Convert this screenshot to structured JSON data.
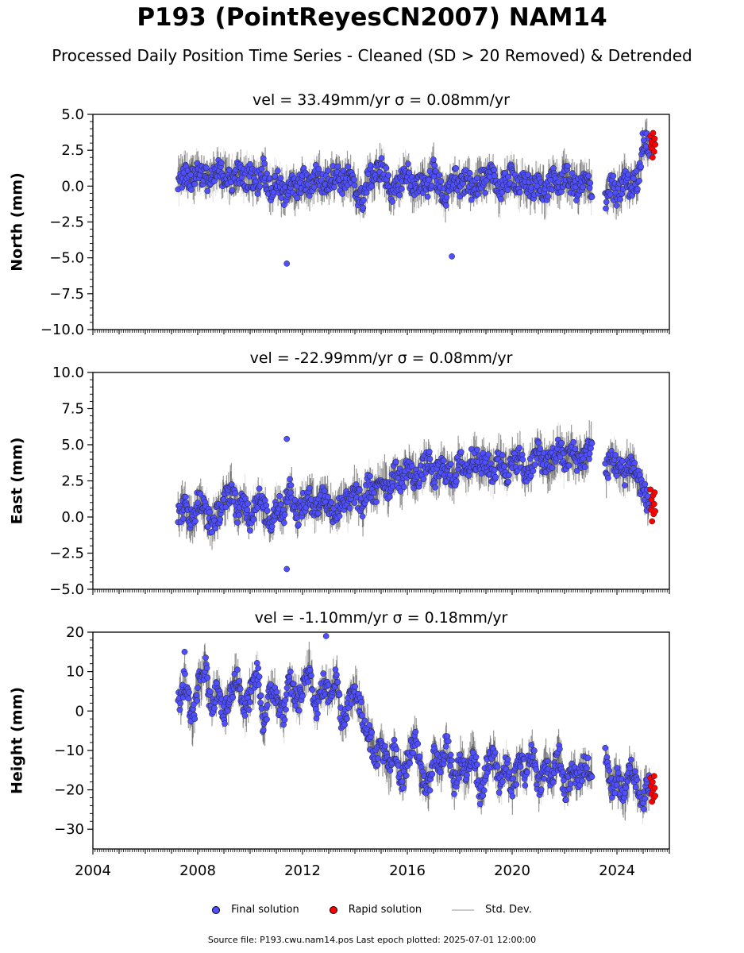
{
  "title": "P193 (PointReyesCN2007) NAM14",
  "subtitle": "Processed Daily Position Time Series - Cleaned (SD > 20 Removed) & Detrended",
  "footer": "Source file: P193.cwu.nam14.pos  Last epoch plotted: 2025-07-01 12:00:00",
  "legend": {
    "final_label": "Final solution",
    "rapid_label": "Rapid solution",
    "std_label": "Std. Dev."
  },
  "colors": {
    "final": "#4f4fff",
    "rapid": "#ff0000",
    "std_dark": "#444444",
    "std_light": "#cfcfcf"
  },
  "chart_data": [
    {
      "type": "scatter",
      "panel": "north",
      "subtitle": "vel = 33.49mm/yr   σ = 0.08mm/yr",
      "ylabel": "North (mm)",
      "xlim": [
        2004,
        2026
      ],
      "ylim": [
        -10,
        5
      ],
      "yticks": [
        "5.0",
        "2.5",
        "0.0",
        "−2.5",
        "−5.0",
        "−7.5",
        "−10.0"
      ],
      "ytick_values": [
        5,
        2.5,
        0,
        -2.5,
        -5,
        -7.5,
        -10
      ],
      "series": [
        {
          "name": "Final solution",
          "x": [
            2007.3,
            2007.5,
            2007.8,
            2008.0,
            2008.3,
            2008.5,
            2008.8,
            2009.0,
            2009.3,
            2009.5,
            2009.8,
            2010.0,
            2010.3,
            2010.5,
            2010.8,
            2011.0,
            2011.3,
            2011.5,
            2011.8,
            2012.0,
            2012.3,
            2012.5,
            2012.8,
            2013.0,
            2013.3,
            2013.5,
            2013.8,
            2014.0,
            2014.3,
            2014.5,
            2014.8,
            2015.0,
            2015.3,
            2015.5,
            2015.8,
            2016.0,
            2016.3,
            2016.5,
            2016.8,
            2017.0,
            2017.3,
            2017.5,
            2017.8,
            2018.0,
            2018.3,
            2018.5,
            2018.8,
            2019.0,
            2019.3,
            2019.5,
            2019.8,
            2020.0,
            2020.3,
            2020.5,
            2020.8,
            2021.0,
            2021.3,
            2021.5,
            2021.8,
            2022.0,
            2022.3,
            2022.5,
            2022.8,
            2023.0,
            2023.6,
            2023.8,
            2024.0,
            2024.3,
            2024.5,
            2024.8,
            2025.0,
            2025.2
          ],
          "y": [
            0.3,
            0.9,
            0.4,
            1.2,
            0.6,
            0.2,
            1.1,
            0.7,
            0.3,
            1.0,
            0.4,
            0.8,
            0.2,
            1.3,
            -0.6,
            0.5,
            -0.8,
            0.3,
            -0.4,
            0.6,
            -0.2,
            1.0,
            0.0,
            0.4,
            0.9,
            0.2,
            0.7,
            -0.3,
            -1.0,
            0.5,
            0.9,
            1.3,
            0.1,
            -0.6,
            0.6,
            1.0,
            -0.5,
            0.4,
            0.0,
            1.1,
            -0.4,
            -0.9,
            0.8,
            -0.2,
            0.5,
            -0.5,
            0.7,
            0.2,
            1.0,
            -0.4,
            0.4,
            0.8,
            -0.1,
            0.3,
            -0.3,
            0.2,
            -0.5,
            0.6,
            -0.1,
            0.9,
            0.1,
            -0.3,
            0.4,
            -0.2,
            -0.8,
            0.3,
            -1.0,
            0.6,
            -0.2,
            0.5,
            3.2,
            2.8
          ]
        },
        {
          "name": "Rapid solution",
          "x": [
            2025.28,
            2025.3,
            2025.32,
            2025.34,
            2025.36,
            2025.38,
            2025.4,
            2025.42,
            2025.44,
            2025.46
          ],
          "y": [
            3.5,
            2.8,
            3.1,
            2.6,
            2.0,
            3.7,
            3.0,
            2.4,
            3.3,
            2.9
          ]
        }
      ],
      "annotation_points": {
        "x": [
          2011.4,
          2017.7
        ],
        "y": [
          -5.4,
          -4.9
        ]
      }
    },
    {
      "type": "scatter",
      "panel": "east",
      "subtitle": "vel = -22.99mm/yr   σ = 0.08mm/yr",
      "ylabel": "East (mm)",
      "xlim": [
        2004,
        2026
      ],
      "ylim": [
        -5,
        10
      ],
      "yticks": [
        "10.0",
        "7.5",
        "5.0",
        "2.5",
        "0.0",
        "−2.5",
        "−5.0"
      ],
      "ytick_values": [
        10,
        7.5,
        5,
        2.5,
        0,
        -2.5,
        -5
      ],
      "series": [
        {
          "name": "Final solution",
          "x": [
            2007.3,
            2007.5,
            2007.8,
            2008.0,
            2008.3,
            2008.5,
            2008.8,
            2009.0,
            2009.3,
            2009.5,
            2009.8,
            2010.0,
            2010.3,
            2010.5,
            2010.8,
            2011.0,
            2011.3,
            2011.5,
            2011.8,
            2012.0,
            2012.3,
            2012.5,
            2012.8,
            2013.0,
            2013.3,
            2013.5,
            2013.8,
            2014.0,
            2014.3,
            2014.5,
            2014.8,
            2015.0,
            2015.3,
            2015.5,
            2015.8,
            2016.0,
            2016.3,
            2016.5,
            2016.8,
            2017.0,
            2017.3,
            2017.5,
            2017.8,
            2018.0,
            2018.3,
            2018.5,
            2018.8,
            2019.0,
            2019.3,
            2019.5,
            2019.8,
            2020.0,
            2020.3,
            2020.5,
            2020.8,
            2021.0,
            2021.3,
            2021.5,
            2021.8,
            2022.0,
            2022.3,
            2022.5,
            2022.8,
            2023.0,
            2023.6,
            2023.8,
            2024.0,
            2024.3,
            2024.5,
            2024.8,
            2025.0,
            2025.2
          ],
          "y": [
            0.2,
            0.8,
            -0.3,
            1.2,
            0.5,
            -0.6,
            0.3,
            1.0,
            2.0,
            0.4,
            1.1,
            -0.2,
            1.5,
            0.6,
            -0.4,
            0.9,
            0.3,
            2.2,
            0.1,
            0.8,
            1.3,
            0.5,
            1.6,
            0.7,
            0.2,
            1.2,
            0.9,
            1.8,
            0.6,
            2.3,
            1.4,
            2.7,
            1.9,
            3.2,
            2.4,
            3.6,
            2.5,
            3.0,
            4.0,
            2.6,
            3.5,
            3.1,
            2.7,
            3.9,
            3.2,
            4.3,
            3.5,
            3.8,
            2.9,
            4.1,
            3.0,
            3.6,
            4.2,
            2.8,
            3.9,
            4.5,
            3.4,
            4.0,
            4.8,
            3.7,
            4.6,
            3.9,
            4.2,
            5.0,
            3.2,
            4.1,
            3.5,
            3.0,
            3.8,
            2.8,
            1.8,
            1.0
          ]
        },
        {
          "name": "Rapid solution",
          "x": [
            2025.28,
            2025.3,
            2025.32,
            2025.34,
            2025.36,
            2025.38,
            2025.4,
            2025.42,
            2025.44,
            2025.46
          ],
          "y": [
            1.9,
            0.5,
            1.2,
            -0.3,
            0.8,
            1.5,
            0.2,
            0.9,
            1.7,
            0.4
          ]
        }
      ],
      "annotation_points": {
        "x": [
          2011.4,
          2011.4
        ],
        "y": [
          5.4,
          -3.6
        ]
      }
    },
    {
      "type": "scatter",
      "panel": "height",
      "subtitle": "vel = -1.10mm/yr   σ = 0.18mm/yr",
      "ylabel": "Height (mm)",
      "xlim": [
        2004,
        2026
      ],
      "ylim": [
        -35,
        20
      ],
      "yticks": [
        "20",
        "10",
        "0",
        "−10",
        "−20",
        "−30"
      ],
      "ytick_values": [
        20,
        10,
        0,
        -10,
        -20,
        -30
      ],
      "xticks": [
        "2004",
        "2008",
        "2012",
        "2016",
        "2020",
        "2024"
      ],
      "xtick_values": [
        2004,
        2008,
        2012,
        2016,
        2020,
        2024
      ],
      "series": [
        {
          "name": "Final solution",
          "x": [
            2007.3,
            2007.5,
            2007.8,
            2008.0,
            2008.3,
            2008.5,
            2008.8,
            2009.0,
            2009.3,
            2009.5,
            2009.8,
            2010.0,
            2010.3,
            2010.5,
            2010.8,
            2011.0,
            2011.3,
            2011.5,
            2011.8,
            2012.0,
            2012.3,
            2012.5,
            2012.8,
            2013.0,
            2013.3,
            2013.5,
            2013.8,
            2014.0,
            2014.3,
            2014.5,
            2014.8,
            2015.0,
            2015.3,
            2015.5,
            2015.8,
            2016.0,
            2016.3,
            2016.5,
            2016.8,
            2017.0,
            2017.3,
            2017.5,
            2017.8,
            2018.0,
            2018.3,
            2018.5,
            2018.8,
            2019.0,
            2019.3,
            2019.5,
            2019.8,
            2020.0,
            2020.3,
            2020.5,
            2020.8,
            2021.0,
            2021.3,
            2021.5,
            2021.8,
            2022.0,
            2022.3,
            2022.5,
            2022.8,
            2023.0,
            2023.6,
            2023.8,
            2024.0,
            2024.3,
            2024.5,
            2024.8,
            2025.0,
            2025.2
          ],
          "y": [
            2,
            8,
            -3,
            6,
            11,
            1,
            7,
            -2,
            5,
            9,
            0,
            4,
            10,
            -4,
            6,
            3,
            -1,
            8,
            2,
            5,
            11,
            0,
            7,
            4,
            9,
            -3,
            3,
            6,
            -2,
            -5,
            -12,
            -8,
            -15,
            -10,
            -18,
            -13,
            -6,
            -16,
            -20,
            -11,
            -14,
            -8,
            -19,
            -13,
            -17,
            -9,
            -22,
            -15,
            -11,
            -18,
            -14,
            -20,
            -12,
            -16,
            -10,
            -19,
            -14,
            -17,
            -11,
            -21,
            -15,
            -18,
            -13,
            -16,
            -12,
            -20,
            -17,
            -22,
            -14,
            -19,
            -23,
            -18
          ]
        },
        {
          "name": "Rapid solution",
          "x": [
            2025.28,
            2025.3,
            2025.32,
            2025.34,
            2025.36,
            2025.38,
            2025.4,
            2025.42,
            2025.44,
            2025.46
          ],
          "y": [
            -17,
            -19,
            -21,
            -23,
            -18,
            -20,
            -22,
            -16.5,
            -19.5,
            -21.5
          ]
        }
      ],
      "annotation_points": {
        "x": [
          2012.9,
          2007.5
        ],
        "y": [
          19,
          15
        ]
      }
    }
  ]
}
